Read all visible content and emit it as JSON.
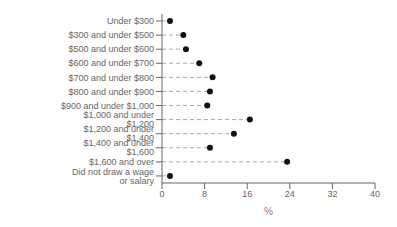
{
  "chart_data": {
    "type": "lollipop",
    "orientation": "horizontal",
    "categories": [
      "Under $300",
      "$300 and under $500",
      "$500 and under $600",
      "$600 and under $700",
      "$700 and under $800",
      "$800 and under $900",
      "$900 and under $1,000",
      "$1,000 and under $1,200",
      "$1,200 and under $1,400",
      "$1,400 and under $1,600",
      "$1,600 and over",
      "Did not draw a wage or salary"
    ],
    "values": [
      1.5,
      4.0,
      4.5,
      7.0,
      9.5,
      9.0,
      8.5,
      16.5,
      13.5,
      9.0,
      23.5,
      1.5
    ],
    "xlim": [
      0,
      40
    ],
    "xticks": [
      0,
      8,
      16,
      24,
      32,
      40
    ],
    "xlabel": "%",
    "color": "#111111",
    "line_style": "dashed",
    "grid": false
  }
}
